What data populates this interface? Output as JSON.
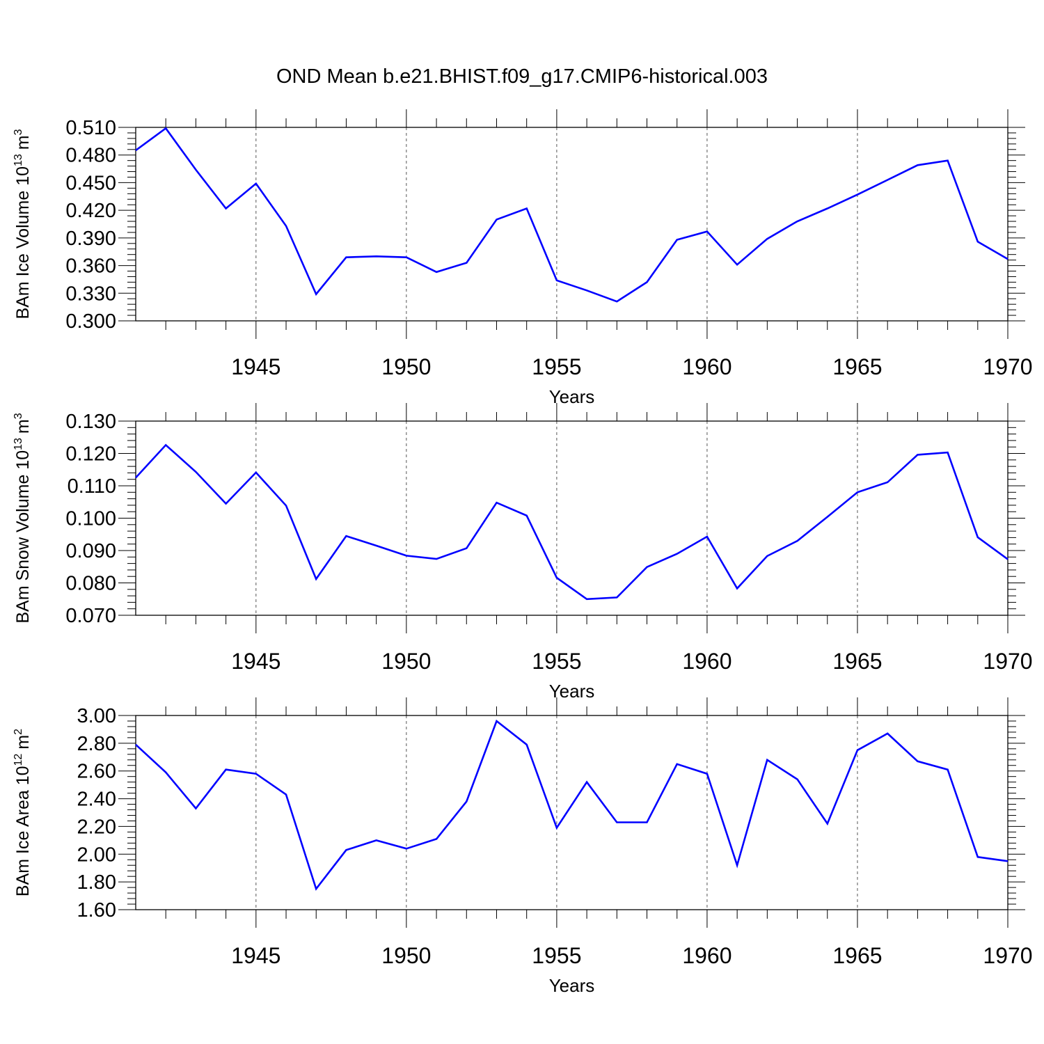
{
  "title": "OND Mean b.e21.BHIST.f09_g17.CMIP6-historical.003",
  "colors": {
    "line": "#0000ff",
    "axis": "#000000",
    "grid": "#555555",
    "background": "#ffffff"
  },
  "chart_data": [
    {
      "type": "line",
      "ylabel_text": "BAm Ice Volume 10",
      "ylabel_exp": "13",
      "ylabel_unit": "m",
      "ylabel_unit_exp": "3",
      "xlabel": "Years",
      "xlim": [
        1941,
        1970
      ],
      "ylim": [
        0.3,
        0.51
      ],
      "x_ticks": [
        "1945",
        "1950",
        "1955",
        "1960",
        "1965",
        "1970"
      ],
      "y_ticks": [
        "0.300",
        "0.330",
        "0.360",
        "0.390",
        "0.420",
        "0.450",
        "0.480",
        "0.510"
      ],
      "grid": "dashed vertical at major x ticks",
      "x": [
        1941,
        1942,
        1943,
        1944,
        1945,
        1946,
        1947,
        1948,
        1949,
        1950,
        1951,
        1952,
        1953,
        1954,
        1955,
        1956,
        1957,
        1958,
        1959,
        1960,
        1961,
        1962,
        1963,
        1964,
        1965,
        1966,
        1967,
        1968,
        1969,
        1970
      ],
      "values": [
        0.485,
        0.509,
        0.464,
        0.422,
        0.449,
        0.403,
        0.329,
        0.369,
        0.37,
        0.369,
        0.353,
        0.363,
        0.41,
        0.422,
        0.344,
        0.333,
        0.321,
        0.342,
        0.388,
        0.397,
        0.361,
        0.389,
        0.408,
        0.422,
        0.437,
        0.453,
        0.469,
        0.474,
        0.386,
        0.367
      ]
    },
    {
      "type": "line",
      "ylabel_text": "BAm Snow Volume 10",
      "ylabel_exp": "13",
      "ylabel_unit": "m",
      "ylabel_unit_exp": "3",
      "xlabel": "Years",
      "xlim": [
        1941,
        1970
      ],
      "ylim": [
        0.07,
        0.13
      ],
      "x_ticks": [
        "1945",
        "1950",
        "1955",
        "1960",
        "1965",
        "1970"
      ],
      "y_ticks": [
        "0.070",
        "0.080",
        "0.090",
        "0.100",
        "0.110",
        "0.120",
        "0.130"
      ],
      "grid": "dashed vertical at major x ticks",
      "x": [
        1941,
        1942,
        1943,
        1944,
        1945,
        1946,
        1947,
        1948,
        1949,
        1950,
        1951,
        1952,
        1953,
        1954,
        1955,
        1956,
        1957,
        1958,
        1959,
        1960,
        1961,
        1962,
        1963,
        1964,
        1965,
        1966,
        1967,
        1968,
        1969,
        1970
      ],
      "values": [
        0.1125,
        0.1226,
        0.1143,
        0.1045,
        0.1141,
        0.1039,
        0.0812,
        0.0945,
        0.0915,
        0.0884,
        0.0874,
        0.0907,
        0.1048,
        0.1008,
        0.0816,
        0.075,
        0.0755,
        0.0849,
        0.089,
        0.0943,
        0.0783,
        0.0883,
        0.093,
        0.1004,
        0.108,
        0.1111,
        0.1196,
        0.1203,
        0.0941,
        0.0873
      ]
    },
    {
      "type": "line",
      "ylabel_text": "BAm Ice Area 10",
      "ylabel_exp": "12",
      "ylabel_unit": "m",
      "ylabel_unit_exp": "2",
      "xlabel": "Years",
      "xlim": [
        1941,
        1970
      ],
      "ylim": [
        1.6,
        3.0
      ],
      "x_ticks": [
        "1945",
        "1950",
        "1955",
        "1960",
        "1965",
        "1970"
      ],
      "y_ticks": [
        "1.60",
        "1.80",
        "2.00",
        "2.20",
        "2.40",
        "2.60",
        "2.80",
        "3.00"
      ],
      "grid": "dashed vertical at major x ticks",
      "x": [
        1941,
        1942,
        1943,
        1944,
        1945,
        1946,
        1947,
        1948,
        1949,
        1950,
        1951,
        1952,
        1953,
        1954,
        1955,
        1956,
        1957,
        1958,
        1959,
        1960,
        1961,
        1962,
        1963,
        1964,
        1965,
        1966,
        1967,
        1968,
        1969,
        1970
      ],
      "values": [
        2.79,
        2.59,
        2.33,
        2.61,
        2.58,
        2.43,
        1.75,
        2.03,
        2.1,
        2.04,
        2.11,
        2.38,
        2.96,
        2.79,
        2.19,
        2.52,
        2.23,
        2.23,
        2.65,
        2.58,
        1.92,
        2.68,
        2.54,
        2.22,
        2.75,
        2.87,
        2.67,
        2.61,
        1.98,
        1.95
      ]
    }
  ]
}
